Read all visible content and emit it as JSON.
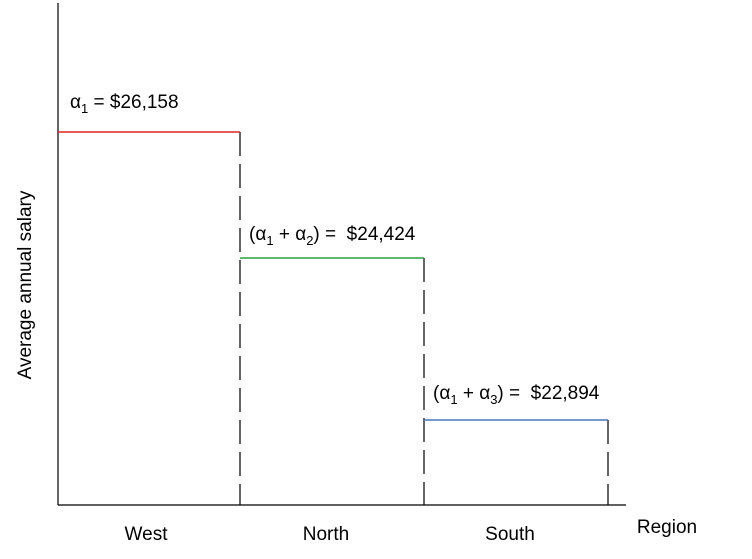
{
  "axis_label": "Average annual salary",
  "x_axis_label": "Region",
  "regions": [
    "West",
    "North",
    "South"
  ],
  "levels": [
    {
      "label": [
        "α",
        "1",
        " = $26,158"
      ],
      "color": "#e02424"
    },
    {
      "label": [
        "(α",
        "1",
        " + α",
        "2",
        ") =  $24,424"
      ],
      "color": "#2ea043"
    },
    {
      "label": [
        "(α",
        "1",
        " + α",
        "3",
        ") =  $22,894"
      ],
      "color": "#4a78b8"
    }
  ]
}
